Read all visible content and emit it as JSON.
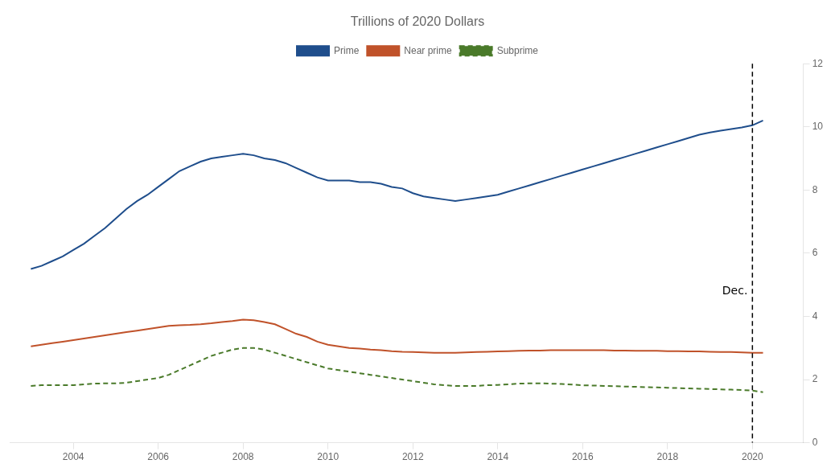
{
  "chart_data": {
    "type": "line",
    "title": "Trillions of 2020 Dollars",
    "x": [
      2003.0,
      2003.25,
      2003.5,
      2003.75,
      2004.0,
      2004.25,
      2004.5,
      2004.75,
      2005.0,
      2005.25,
      2005.5,
      2005.75,
      2006.0,
      2006.25,
      2006.5,
      2006.75,
      2007.0,
      2007.25,
      2007.5,
      2007.75,
      2008.0,
      2008.25,
      2008.5,
      2008.75,
      2009.0,
      2009.25,
      2009.5,
      2009.75,
      2010.0,
      2010.25,
      2010.5,
      2010.75,
      2011.0,
      2011.25,
      2011.5,
      2011.75,
      2012.0,
      2012.25,
      2012.5,
      2012.75,
      2013.0,
      2013.25,
      2013.5,
      2013.75,
      2014.0,
      2014.25,
      2014.5,
      2014.75,
      2015.0,
      2015.25,
      2015.5,
      2015.75,
      2016.0,
      2016.25,
      2016.5,
      2016.75,
      2017.0,
      2017.25,
      2017.5,
      2017.75,
      2018.0,
      2018.25,
      2018.5,
      2018.75,
      2019.0,
      2019.25,
      2019.5,
      2019.75,
      2020.0,
      2020.25
    ],
    "series": [
      {
        "name": "Prime",
        "color": "#1f4e8c",
        "line_style": "solid",
        "values": [
          5.5,
          5.6,
          5.75,
          5.9,
          6.1,
          6.3,
          6.55,
          6.8,
          7.1,
          7.4,
          7.65,
          7.85,
          8.1,
          8.35,
          8.6,
          8.75,
          8.9,
          9.0,
          9.05,
          9.1,
          9.15,
          9.1,
          9.0,
          8.95,
          8.85,
          8.7,
          8.55,
          8.4,
          8.3,
          8.3,
          8.3,
          8.25,
          8.25,
          8.2,
          8.1,
          8.05,
          7.9,
          7.8,
          7.75,
          7.7,
          7.65,
          7.7,
          7.75,
          7.8,
          7.85,
          7.95,
          8.05,
          8.15,
          8.25,
          8.35,
          8.45,
          8.55,
          8.65,
          8.75,
          8.85,
          8.95,
          9.05,
          9.15,
          9.25,
          9.35,
          9.45,
          9.55,
          9.65,
          9.75,
          9.82,
          9.88,
          9.93,
          9.98,
          10.05,
          10.2
        ]
      },
      {
        "name": "Near prime",
        "color": "#c0522a",
        "line_style": "solid",
        "values": [
          3.05,
          3.1,
          3.15,
          3.2,
          3.25,
          3.3,
          3.35,
          3.4,
          3.45,
          3.5,
          3.55,
          3.6,
          3.65,
          3.7,
          3.72,
          3.73,
          3.75,
          3.78,
          3.82,
          3.85,
          3.9,
          3.88,
          3.82,
          3.75,
          3.6,
          3.45,
          3.35,
          3.2,
          3.1,
          3.05,
          3.0,
          2.98,
          2.95,
          2.93,
          2.9,
          2.88,
          2.87,
          2.86,
          2.85,
          2.85,
          2.85,
          2.86,
          2.87,
          2.88,
          2.89,
          2.9,
          2.91,
          2.92,
          2.92,
          2.93,
          2.93,
          2.93,
          2.93,
          2.93,
          2.93,
          2.92,
          2.92,
          2.91,
          2.91,
          2.91,
          2.9,
          2.9,
          2.89,
          2.89,
          2.88,
          2.87,
          2.87,
          2.86,
          2.85,
          2.85
        ]
      },
      {
        "name": "Subprime",
        "color": "#4a7a2a",
        "line_style": "dashed",
        "values": [
          1.8,
          1.82,
          1.82,
          1.82,
          1.82,
          1.85,
          1.87,
          1.88,
          1.88,
          1.9,
          1.95,
          2.0,
          2.05,
          2.15,
          2.3,
          2.45,
          2.6,
          2.75,
          2.85,
          2.95,
          3.0,
          3.0,
          2.95,
          2.85,
          2.75,
          2.65,
          2.55,
          2.45,
          2.35,
          2.3,
          2.25,
          2.2,
          2.15,
          2.1,
          2.05,
          2.0,
          1.95,
          1.9,
          1.85,
          1.82,
          1.8,
          1.8,
          1.8,
          1.82,
          1.83,
          1.85,
          1.87,
          1.88,
          1.88,
          1.87,
          1.86,
          1.84,
          1.82,
          1.81,
          1.8,
          1.79,
          1.78,
          1.77,
          1.76,
          1.75,
          1.74,
          1.73,
          1.72,
          1.71,
          1.7,
          1.69,
          1.68,
          1.67,
          1.65,
          1.6
        ]
      }
    ],
    "xlim": [
      2002.5,
      2021.2
    ],
    "xticks": [
      2004,
      2006,
      2008,
      2010,
      2012,
      2014,
      2016,
      2018,
      2020
    ],
    "ylim": [
      0,
      12
    ],
    "yticks": [
      0,
      2,
      4,
      6,
      8,
      10,
      12
    ],
    "annotations": [
      {
        "text": "Dec.",
        "x": 2020.0,
        "y": 4.8,
        "line_style": "dashed",
        "color": "#000000"
      }
    ],
    "grid": false,
    "legend": "top"
  }
}
